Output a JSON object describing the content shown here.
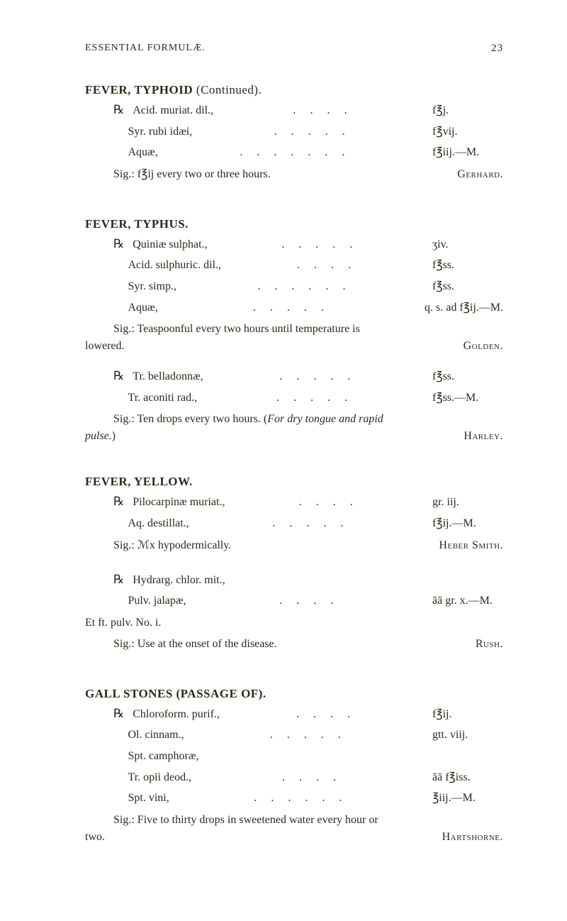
{
  "header": {
    "title": "ESSENTIAL FORMULÆ.",
    "page": "23"
  },
  "sections": [
    {
      "title": "FEVER, TYPHOID",
      "continued": " (Continued).",
      "prescriptions": [
        {
          "rx": "℞",
          "items": [
            {
              "name": "Acid. muriat. dil.,",
              "dots": ". . . .",
              "amount": "f℥j."
            },
            {
              "name": "Syr. rubi idæi,",
              "dots": ". . . . .",
              "amount": "f℥vij."
            },
            {
              "name": "Aquæ,",
              "dots": ". . . . . . .",
              "amount": "f℥iij.—M."
            }
          ],
          "sig": "Sig.: f℥ij every two or three hours.",
          "author": "Gerhard."
        }
      ]
    },
    {
      "title": "FEVER, TYPHUS.",
      "continued": "",
      "prescriptions": [
        {
          "rx": "℞",
          "items": [
            {
              "name": "Quiniæ sulphat.,",
              "dots": ". . . . .",
              "amount": "ʒiv."
            },
            {
              "name": "Acid. sulphuric. dil.,",
              "dots": ". . . .",
              "amount": "f℥ss."
            },
            {
              "name": "Syr. simp.,",
              "dots": ". . . . . .",
              "amount": "f℥ss."
            },
            {
              "name": "Aquæ,",
              "dots": ". . . . .",
              "amount": "q. s. ad   f℥ij.—M."
            }
          ],
          "sig": "Sig.: Teaspoonful every two hours until temperature is",
          "sig2": "lowered.",
          "author": "Golden."
        },
        {
          "rx": "℞",
          "items": [
            {
              "name": "Tr. belladonnæ,",
              "dots": ". . . . .",
              "amount": "f℥ss."
            },
            {
              "name": "Tr. aconiti rad.,",
              "dots": ". . . . .",
              "amount": "f℥ss.—M."
            }
          ],
          "sig": "Sig.: Ten drops every two hours.   (",
          "sigItalic": "For dry tongue and rapid",
          "sig2": "pulse.",
          "sig2close": ")",
          "author": "Harley."
        }
      ]
    },
    {
      "title": "FEVER, YELLOW.",
      "continued": "",
      "prescriptions": [
        {
          "rx": "℞",
          "items": [
            {
              "name": "Pilocarpinæ muriat.,",
              "dots": ". . . .",
              "amount": "gr. iij."
            },
            {
              "name": "Aq. destillat.,",
              "dots": ". . . . .",
              "amount": "f℥ij.—M."
            }
          ],
          "sig": "Sig.: ℳx hypodermically.",
          "author": "Heber Smith."
        },
        {
          "rx": "℞",
          "items": [
            {
              "name": "Hydrarg. chlor. mit.,",
              "dots": "",
              "amount": ""
            },
            {
              "name": "Pulv. jalapæ,",
              "dots": ". . . .",
              "amount": "āā   gr. x.—M."
            }
          ],
          "extra": "Et ft. pulv. No. i.",
          "sig": "Sig.: Use at the onset of the disease.",
          "author": "Rush."
        }
      ]
    },
    {
      "title": "GALL STONES (PASSAGE OF).",
      "continued": "",
      "prescriptions": [
        {
          "rx": "℞",
          "items": [
            {
              "name": "Chloroform. purif.,",
              "dots": ". . . .",
              "amount": "f℥ij."
            },
            {
              "name": "Ol. cinnam.,",
              "dots": ". . . . .",
              "amount": "gtt. viij."
            },
            {
              "name": "Spt. camphoræ,",
              "dots": "",
              "amount": ""
            },
            {
              "name": "Tr. opii deod.,",
              "dots": ". . . .",
              "amount": "āā   f℥iss."
            },
            {
              "name": "Spt. vini,",
              "dots": ". . . . . .",
              "amount": "℥iij.—M."
            }
          ],
          "sig": "Sig.: Five to thirty drops in sweetened water every hour or",
          "sig2": "two.",
          "author": "Hartshorne."
        }
      ]
    }
  ]
}
